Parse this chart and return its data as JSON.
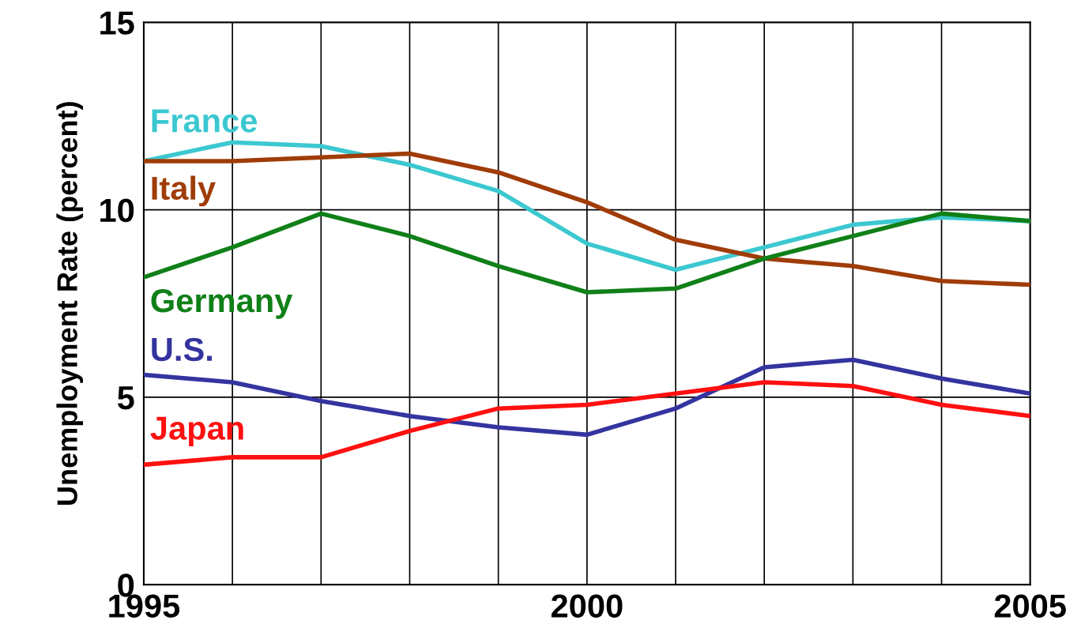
{
  "chart_data": {
    "type": "line",
    "ylabel": "Unemployment Rate (percent)",
    "x": [
      1995,
      1996,
      1997,
      1998,
      1999,
      2000,
      2001,
      2002,
      2003,
      2004,
      2005
    ],
    "series": [
      {
        "name": "France",
        "color": "#3cc8d0",
        "values": [
          11.3,
          11.8,
          11.7,
          11.2,
          10.5,
          9.1,
          8.4,
          9.0,
          9.6,
          9.8,
          9.7
        ]
      },
      {
        "name": "Italy",
        "color": "#a03c08",
        "values": [
          11.3,
          11.3,
          11.4,
          11.5,
          11.0,
          10.2,
          9.2,
          8.7,
          8.5,
          8.1,
          8.0
        ]
      },
      {
        "name": "Germany",
        "color": "#108018",
        "values": [
          8.2,
          9.0,
          9.9,
          9.3,
          8.5,
          7.8,
          7.9,
          8.7,
          9.3,
          9.9,
          9.7
        ]
      },
      {
        "name": "U.S.",
        "color": "#3434a0",
        "values": [
          5.6,
          5.4,
          4.9,
          4.5,
          4.2,
          4.0,
          4.7,
          5.8,
          6.0,
          5.5,
          5.1
        ]
      },
      {
        "name": "Japan",
        "color": "#ff1010",
        "values": [
          3.2,
          3.4,
          3.4,
          4.1,
          4.7,
          4.8,
          5.1,
          5.4,
          5.3,
          4.8,
          4.5
        ]
      }
    ],
    "xlim": [
      1995,
      2005
    ],
    "xticks": [
      1995,
      {
        "value": 1996,
        "label": null
      },
      {
        "value": 1997,
        "label": null
      },
      {
        "value": 1998,
        "label": null
      },
      {
        "value": 1999,
        "label": null
      },
      2000,
      {
        "value": 2001,
        "label": null
      },
      {
        "value": 2002,
        "label": null
      },
      {
        "value": 2003,
        "label": null
      },
      {
        "value": 2004,
        "label": null
      },
      2005
    ],
    "ylim": [
      0,
      15
    ],
    "yticks": [
      0,
      5,
      10,
      15
    ],
    "grid": true,
    "line_style": "solid"
  }
}
